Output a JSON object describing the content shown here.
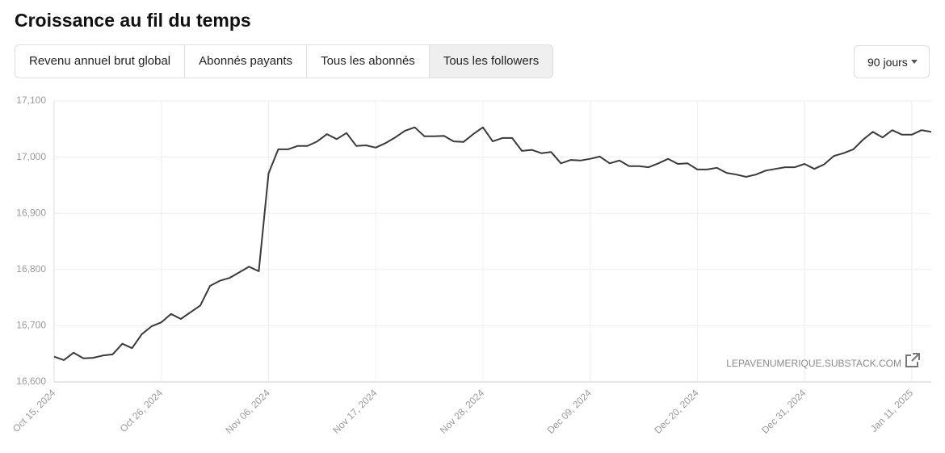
{
  "page": {
    "tabs": [
      "Revenu annuel brut global",
      "Abonnés payants",
      "Tous les abonnés",
      "Tous les followers"
    ],
    "dropdown": "90 jours",
    "watermark": "LEPAVENUMERIQUE.SUBSTACK.COM"
  },
  "chart_data": {
    "type": "line",
    "title": "Croissance au fil du temps",
    "color": "#3a3a3a",
    "grid": true,
    "categories": [
      "Oct 15, 2024",
      null,
      null,
      null,
      null,
      null,
      null,
      null,
      null,
      null,
      null,
      "Oct 26, 2024",
      null,
      null,
      null,
      null,
      null,
      null,
      null,
      null,
      null,
      null,
      "Nov 06, 2024",
      null,
      null,
      null,
      null,
      null,
      null,
      null,
      null,
      null,
      null,
      "Nov 17, 2024",
      null,
      null,
      null,
      null,
      null,
      null,
      null,
      null,
      null,
      null,
      "Nov 28, 2024",
      null,
      null,
      null,
      null,
      null,
      null,
      null,
      null,
      null,
      null,
      "Dec 09, 2024",
      null,
      null,
      null,
      null,
      null,
      null,
      null,
      null,
      null,
      null,
      "Dec 20, 2024",
      null,
      null,
      null,
      null,
      null,
      null,
      null,
      null,
      null,
      null,
      "Dec 31, 2024",
      null,
      null,
      null,
      null,
      null,
      null,
      null,
      null,
      null,
      null,
      "Jan 11, 2025",
      null,
      null
    ],
    "values": [
      16645,
      16639,
      16652,
      16642,
      16643,
      16647,
      16649,
      16668,
      16660,
      16685,
      16699,
      16706,
      16721,
      16712,
      16724,
      16736,
      16771,
      16780,
      16785,
      16795,
      16805,
      16797,
      16971,
      17014,
      17014,
      17020,
      17020,
      17028,
      17041,
      17032,
      17043,
      17020,
      17021,
      17017,
      17025,
      17035,
      17047,
      17053,
      17037,
      17037,
      17038,
      17028,
      17027,
      17041,
      17053,
      17028,
      17034,
      17034,
      17011,
      17013,
      17007,
      17009,
      16989,
      16995,
      16994,
      16997,
      17001,
      16989,
      16994,
      16984,
      16984,
      16982,
      16989,
      16997,
      16988,
      16989,
      16978,
      16978,
      16981,
      16972,
      16969,
      16965,
      16969,
      16976,
      16979,
      16982,
      16982,
      16988,
      16979,
      16987,
      17002,
      17007,
      17014,
      17031,
      17045,
      17035,
      17048,
      17040,
      17040,
      17048,
      17045
    ],
    "ylim": [
      16600,
      17100
    ],
    "yticks": [
      {
        "value": 16600,
        "label": "16,600"
      },
      {
        "value": 16700,
        "label": "16,700"
      },
      {
        "value": 16800,
        "label": "16,800"
      },
      {
        "value": 16900,
        "label": "16,900"
      },
      {
        "value": 17000,
        "label": "17,000"
      },
      {
        "value": 17100,
        "label": "17,100"
      }
    ]
  }
}
